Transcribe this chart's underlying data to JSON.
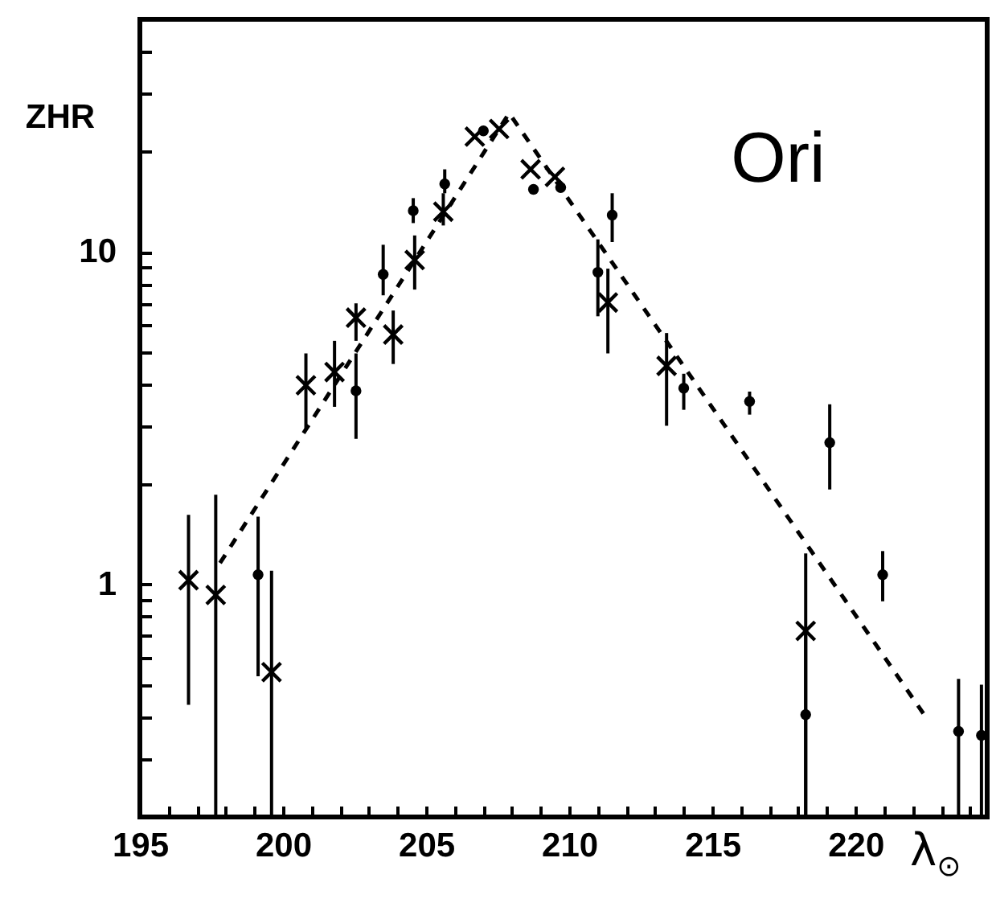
{
  "chart_data": {
    "type": "scatter",
    "xlabel": "λ$_{⊙}$",
    "ylabel": "ZHR",
    "annotations": [
      "Ori"
    ],
    "log": "y",
    "grid": false,
    "xlim": [
      195,
      224.6
    ],
    "ylim": [
      0.2,
      50
    ],
    "xticks": [
      195,
      {
        "value": 196,
        "label": null
      },
      {
        "value": 197,
        "label": null
      },
      {
        "value": 198,
        "label": null
      },
      {
        "value": 199,
        "label": null
      },
      200,
      {
        "value": 201,
        "label": null
      },
      {
        "value": 202,
        "label": null
      },
      {
        "value": 203,
        "label": null
      },
      {
        "value": 204,
        "label": null
      },
      205,
      {
        "value": 206,
        "label": null
      },
      {
        "value": 207,
        "label": null
      },
      {
        "value": 208,
        "label": null
      },
      {
        "value": 209,
        "label": null
      },
      210,
      {
        "value": 211,
        "label": null
      },
      {
        "value": 212,
        "label": null
      },
      {
        "value": 213,
        "label": null
      },
      {
        "value": 214,
        "label": null
      },
      215,
      {
        "value": 216,
        "label": null
      },
      {
        "value": 217,
        "label": null
      },
      {
        "value": 218,
        "label": null
      },
      {
        "value": 219,
        "label": null
      },
      220,
      {
        "value": 221,
        "label": null
      },
      {
        "value": 222,
        "label": null
      },
      {
        "value": 223,
        "label": null
      },
      {
        "value": 224,
        "label": null
      }
    ],
    "yticks": [
      {
        "value": 0.2,
        "label": null
      },
      {
        "value": 0.3,
        "label": null
      },
      {
        "value": 0.4,
        "label": null
      },
      {
        "value": 0.5,
        "label": null
      },
      {
        "value": 0.6,
        "label": null
      },
      {
        "value": 0.7,
        "label": null
      },
      {
        "value": 0.8,
        "label": null
      },
      {
        "value": 0.9,
        "label": null
      },
      1,
      {
        "value": 2,
        "label": null
      },
      {
        "value": 3,
        "label": null
      },
      {
        "value": 4,
        "label": null
      },
      {
        "value": 5,
        "label": null
      },
      {
        "value": 6,
        "label": null
      },
      {
        "value": 7,
        "label": null
      },
      {
        "value": 8,
        "label": null
      },
      {
        "value": 9,
        "label": null
      },
      10,
      {
        "value": 20,
        "label": null
      },
      {
        "value": 30,
        "label": null
      },
      {
        "value": 40,
        "label": null
      }
    ],
    "series": [
      {
        "type": "line",
        "color": "#000000",
        "line_style": "dashed",
        "marker": "none",
        "x": [
          197.8,
          207.9,
          222.4
        ],
        "values": [
          1.16,
          26.1,
          0.406
        ]
      },
      {
        "color": "#000000",
        "marker": "cross",
        "x": [
          196.7,
          197.65,
          199.6,
          200.8,
          201.8,
          202.55,
          203.85,
          204.6,
          205.6,
          206.7,
          207.55,
          208.65,
          209.5,
          211.35,
          213.4,
          218.26
        ],
        "values": [
          1.03,
          0.93,
          0.545,
          3.97,
          4.35,
          6.34,
          5.64,
          9.45,
          13.2,
          22.2,
          23.4,
          17.7,
          16.8,
          7.04,
          4.54,
          0.725
        ],
        "errors": [
          [
            0.435,
            1.62
          ],
          [
            0.2,
            1.86
          ],
          [
            0.2,
            1.1
          ],
          [
            2.95,
            4.95
          ],
          [
            3.42,
            5.4
          ],
          [
            5.4,
            7.0
          ],
          [
            4.6,
            6.66
          ],
          [
            7.7,
            11.2
          ],
          [
            12,
            15
          ],
          null,
          null,
          null,
          null,
          [
            4.95,
            8.9
          ],
          [
            3.0,
            5.7
          ],
          [
            0.2,
            1.24
          ]
        ]
      },
      {
        "color": "#000000",
        "marker": "circle",
        "x": [
          199.13,
          202.55,
          203.5,
          204.55,
          205.65,
          207.0,
          208.75,
          209.7,
          211.5,
          211.0,
          214.0,
          216.3,
          219.1,
          220.95,
          218.26,
          223.6,
          224.4
        ],
        "values": [
          1.07,
          3.82,
          8.55,
          13.3,
          16,
          23.1,
          15.4,
          15.6,
          12.9,
          8.68,
          3.89,
          3.55,
          2.67,
          1.07,
          0.406,
          0.362,
          0.352
        ],
        "errors": [
          [
            0.53,
            1.6
          ],
          [
            2.74,
            4.95
          ],
          [
            7.4,
            10.5
          ],
          [
            12.2,
            14.5
          ],
          [
            15,
            17.7
          ],
          null,
          null,
          null,
          [
            10.7,
            15
          ],
          [
            6.4,
            10.9
          ],
          [
            3.35,
            4.3
          ],
          [
            3.24,
            3.8
          ],
          [
            1.93,
            3.48
          ],
          [
            0.89,
            1.26
          ],
          [
            0.2,
            0.72
          ],
          [
            0.2,
            0.52
          ],
          [
            0.2,
            0.5
          ]
        ]
      }
    ]
  }
}
